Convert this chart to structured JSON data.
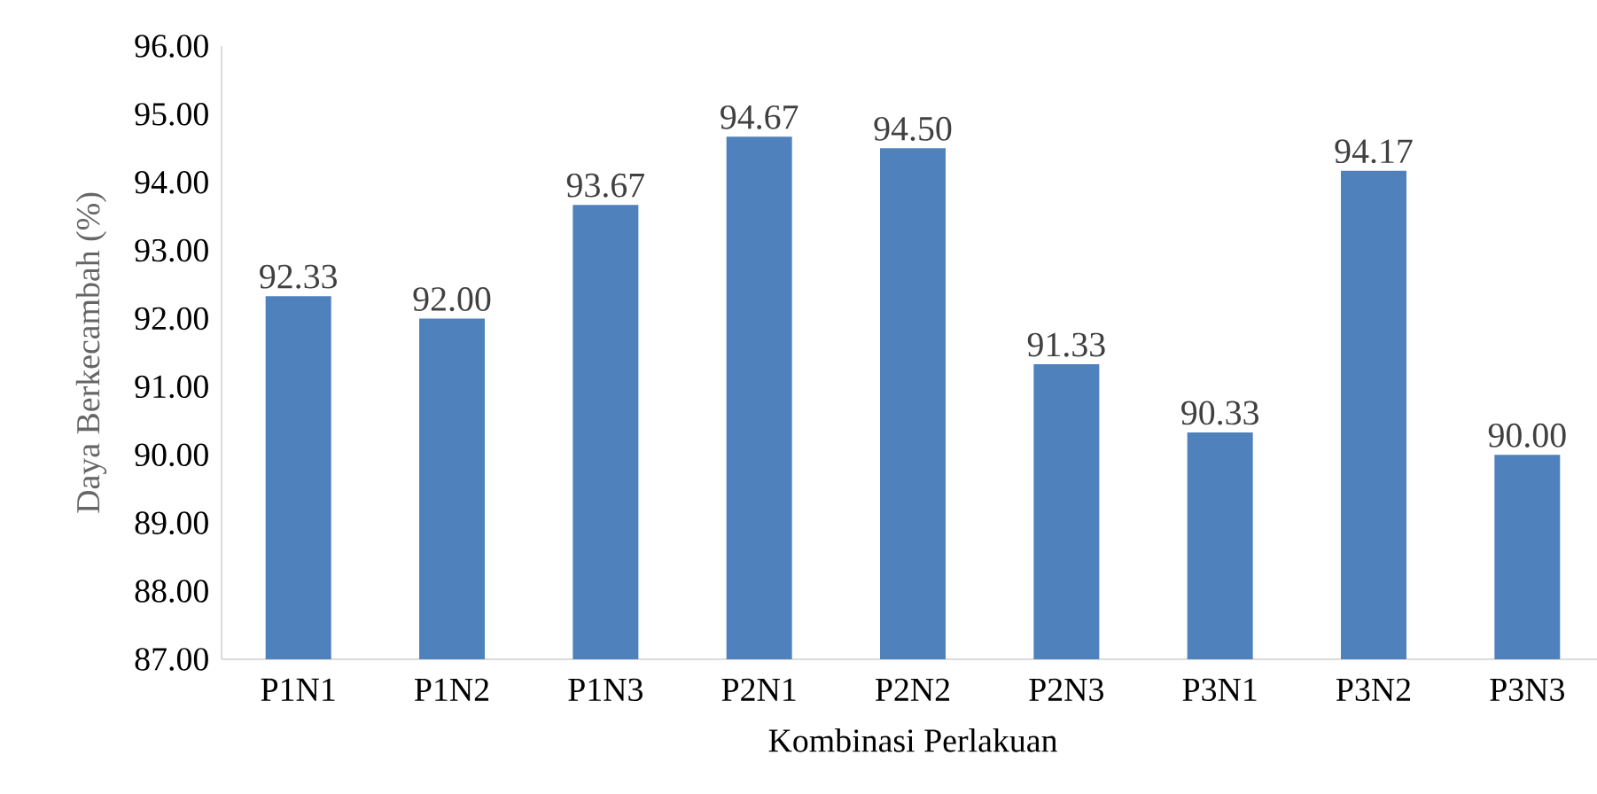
{
  "chart_data": {
    "type": "bar",
    "xlabel": "Kombinasi Perlakuan",
    "ylabel": "Daya Berkecambah (%)",
    "categories": [
      "P1N1",
      "P1N2",
      "P1N3",
      "P2N1",
      "P2N2",
      "P2N3",
      "P3N1",
      "P3N2",
      "P3N3"
    ],
    "values": [
      92.33,
      92.0,
      93.67,
      94.67,
      94.5,
      91.33,
      90.33,
      94.17,
      90.0
    ],
    "value_labels": [
      "92.33",
      "92.00",
      "93.67",
      "94.67",
      "94.50",
      "91.33",
      "90.33",
      "94.17",
      "90.00"
    ],
    "color": "#4f81bd",
    "ylim": [
      87,
      96
    ],
    "yticks": [
      {
        "value": 87,
        "label": "87.00"
      },
      {
        "value": 88,
        "label": "88.00"
      },
      {
        "value": 89,
        "label": "89.00"
      },
      {
        "value": 90,
        "label": "90.00"
      },
      {
        "value": 91,
        "label": "91.00"
      },
      {
        "value": 92,
        "label": "92.00"
      },
      {
        "value": 93,
        "label": "93.00"
      },
      {
        "value": 94,
        "label": "94.00"
      },
      {
        "value": 95,
        "label": "95.00"
      },
      {
        "value": 96,
        "label": "96.00"
      }
    ],
    "grid": false
  }
}
